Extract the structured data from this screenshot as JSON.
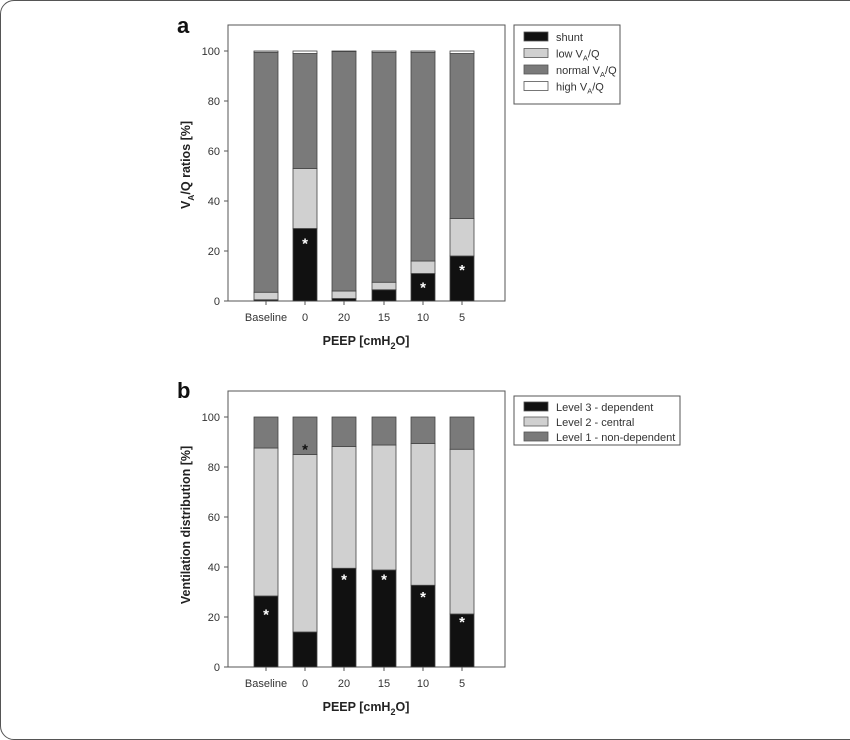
{
  "chart_data": [
    {
      "panel_label": "a",
      "type": "bar",
      "stacked": true,
      "title": "",
      "xlabel": "PEEP [cmH2O]",
      "ylabel": "VA/Q ratios [%]",
      "ylim": [
        0,
        100
      ],
      "yticks": [
        0,
        20,
        40,
        60,
        80,
        100
      ],
      "categories": [
        "Baseline",
        "0",
        "20",
        "15",
        "10",
        "5"
      ],
      "series": [
        {
          "name": "shunt",
          "color": "#111111",
          "values": [
            0.5,
            29,
            1,
            4.5,
            11,
            18
          ]
        },
        {
          "name": "low VA/Q",
          "color": "#d0d0d0",
          "values": [
            3,
            24,
            3,
            3,
            5,
            15
          ]
        },
        {
          "name": "normal VA/Q",
          "color": "#7a7a7a",
          "values": [
            96,
            46,
            95.8,
            92,
            83.5,
            66
          ]
        },
        {
          "name": "high VA/Q",
          "color": "#ffffff",
          "values": [
            0.5,
            1,
            0.2,
            0.5,
            0.5,
            1
          ]
        }
      ],
      "significance_markers": [
        {
          "category": "0",
          "series": "shunt",
          "symbol": "*",
          "y": 23
        },
        {
          "category": "10",
          "series": "shunt",
          "symbol": "*",
          "y": 5.5
        },
        {
          "category": "5",
          "series": "shunt",
          "symbol": "*",
          "y": 12.5
        }
      ],
      "legend": {
        "position": "right-top",
        "entries": [
          "shunt",
          "low VA/Q",
          "normal VA/Q",
          "high VA/Q"
        ]
      },
      "grid": false
    },
    {
      "panel_label": "b",
      "type": "bar",
      "stacked": true,
      "title": "",
      "xlabel": "PEEP [cmH2O]",
      "ylabel": "Ventilation distribution [%]",
      "ylim": [
        0,
        100
      ],
      "yticks": [
        0,
        20,
        40,
        60,
        80,
        100
      ],
      "categories": [
        "Baseline",
        "0",
        "20",
        "15",
        "10",
        "5"
      ],
      "series": [
        {
          "name": "Level 3 - dependent",
          "color": "#111111",
          "values": [
            28.4,
            14,
            39.5,
            38.8,
            32.7,
            21.2
          ]
        },
        {
          "name": "Level 2 - central",
          "color": "#d0d0d0",
          "values": [
            59.2,
            71,
            48.7,
            50,
            56.7,
            65.9
          ]
        },
        {
          "name": "Level 1 - non-dependent",
          "color": "#7a7a7a",
          "values": [
            12.4,
            15,
            11.8,
            11.2,
            10.6,
            12.9
          ]
        }
      ],
      "significance_markers": [
        {
          "category": "Baseline",
          "series": "Level 3 - dependent",
          "symbol": "*",
          "y": 21,
          "color": "#ffffff"
        },
        {
          "category": "0",
          "series": "Level 2 - central",
          "symbol": "*",
          "y": 87,
          "color": "#111111"
        },
        {
          "category": "20",
          "series": "Level 3 - dependent",
          "symbol": "*",
          "y": 35,
          "color": "#ffffff"
        },
        {
          "category": "15",
          "series": "Level 3 - dependent",
          "symbol": "*",
          "y": 35,
          "color": "#ffffff"
        },
        {
          "category": "10",
          "series": "Level 3 - dependent",
          "symbol": "*",
          "y": 28,
          "color": "#ffffff"
        },
        {
          "category": "5",
          "series": "Level 3 - dependent",
          "symbol": "*",
          "y": 18,
          "color": "#ffffff"
        }
      ],
      "legend": {
        "position": "right-top",
        "entries": [
          "Level 3 - dependent",
          "Level 2 - central",
          "Level 1 - non-dependent"
        ]
      },
      "grid": false
    }
  ],
  "panels": {
    "a": {
      "label": "a",
      "ylabel_prefix": "V",
      "ylabel_sub": "A",
      "ylabel_suffix": "/Q ratios [%]",
      "xlabel_prefix": "PEEP [cmH",
      "xlabel_sub": "2",
      "xlabel_suffix": "O]",
      "legend": [
        {
          "prefix": "shunt",
          "sub": "",
          "suffix": ""
        },
        {
          "prefix": "low V",
          "sub": "A",
          "suffix": "/Q"
        },
        {
          "prefix": "normal V",
          "sub": "A",
          "suffix": "/Q"
        },
        {
          "prefix": "high V",
          "sub": "A",
          "suffix": "/Q"
        }
      ]
    },
    "b": {
      "label": "b",
      "ylabel": "Ventilation distribution [%]",
      "xlabel_prefix": "PEEP [cmH",
      "xlabel_sub": "2",
      "xlabel_suffix": "O]",
      "legend": [
        "Level 3 - dependent",
        "Level 2 - central",
        "Level 1 - non-dependent"
      ]
    }
  }
}
